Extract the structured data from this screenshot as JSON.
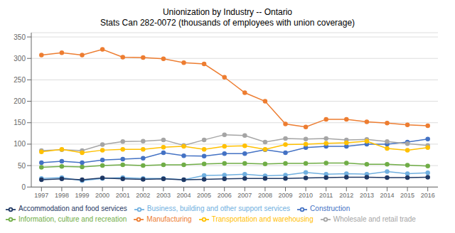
{
  "chart_data": {
    "type": "line",
    "title": "Unionization by Industry -- Ontario\nStats Can 282-0072 (thousands of employees with union coverage)",
    "x": [
      1997,
      1998,
      1999,
      2000,
      2001,
      2002,
      2003,
      2004,
      2005,
      2006,
      2007,
      2008,
      2009,
      2010,
      2011,
      2012,
      2013,
      2014,
      2015,
      2016
    ],
    "series": [
      {
        "name": "Construction",
        "values": [
          57,
          60,
          57,
          63,
          65,
          67,
          80,
          73,
          72,
          78,
          78,
          87,
          80,
          92,
          95,
          95,
          100,
          100,
          105,
          112
        ],
        "color": "#4472C4"
      },
      {
        "name": "Manufacturing",
        "values": [
          308,
          313,
          308,
          321,
          303,
          302,
          299,
          290,
          287,
          256,
          220,
          200,
          147,
          140,
          158,
          158,
          152,
          149,
          145,
          143
        ],
        "color": "#ED7D31"
      },
      {
        "name": "Wholesale and retail trade",
        "values": [
          85,
          87,
          85,
          99,
          106,
          107,
          110,
          97,
          110,
          122,
          120,
          105,
          113,
          112,
          113,
          110,
          111,
          106,
          101,
          97
        ],
        "color": "#A5A5A5"
      },
      {
        "name": "Transportation and warehousing",
        "values": [
          82,
          88,
          80,
          86,
          88,
          88,
          93,
          95,
          88,
          95,
          96,
          88,
          99,
          100,
          102,
          103,
          107,
          90,
          86,
          92
        ],
        "color": "#FFC000"
      },
      {
        "name": "Business, building and other support services",
        "values": [
          20,
          22,
          15,
          20,
          22,
          20,
          20,
          17,
          27,
          28,
          30,
          26,
          28,
          34,
          30,
          31,
          30,
          36,
          31,
          33
        ],
        "color": "#70B0E0"
      },
      {
        "name": "Information, culture and recreation",
        "values": [
          46,
          48,
          47,
          50,
          52,
          50,
          52,
          52,
          54,
          55,
          55,
          54,
          55,
          55,
          56,
          56,
          53,
          53,
          51,
          49
        ],
        "color": "#70AD47"
      },
      {
        "name": "Accommodation and food services",
        "values": [
          17,
          19,
          17,
          21,
          19,
          18,
          19,
          17,
          18,
          19,
          20,
          20,
          20,
          21,
          22,
          23,
          23,
          22,
          22,
          23
        ],
        "color": "#1F3864"
      }
    ],
    "xlim": [
      1996.5,
      2016.5
    ],
    "xticks": [
      1997,
      1998,
      1999,
      2000,
      2001,
      2002,
      2003,
      2004,
      2005,
      2006,
      2007,
      2008,
      2009,
      2010,
      2011,
      2012,
      2013,
      2014,
      2015,
      2016
    ],
    "ylim": [
      0,
      360
    ],
    "yticks": [
      0,
      50,
      100,
      150,
      200,
      250,
      300,
      350
    ],
    "grid": true,
    "marker": "circle"
  }
}
